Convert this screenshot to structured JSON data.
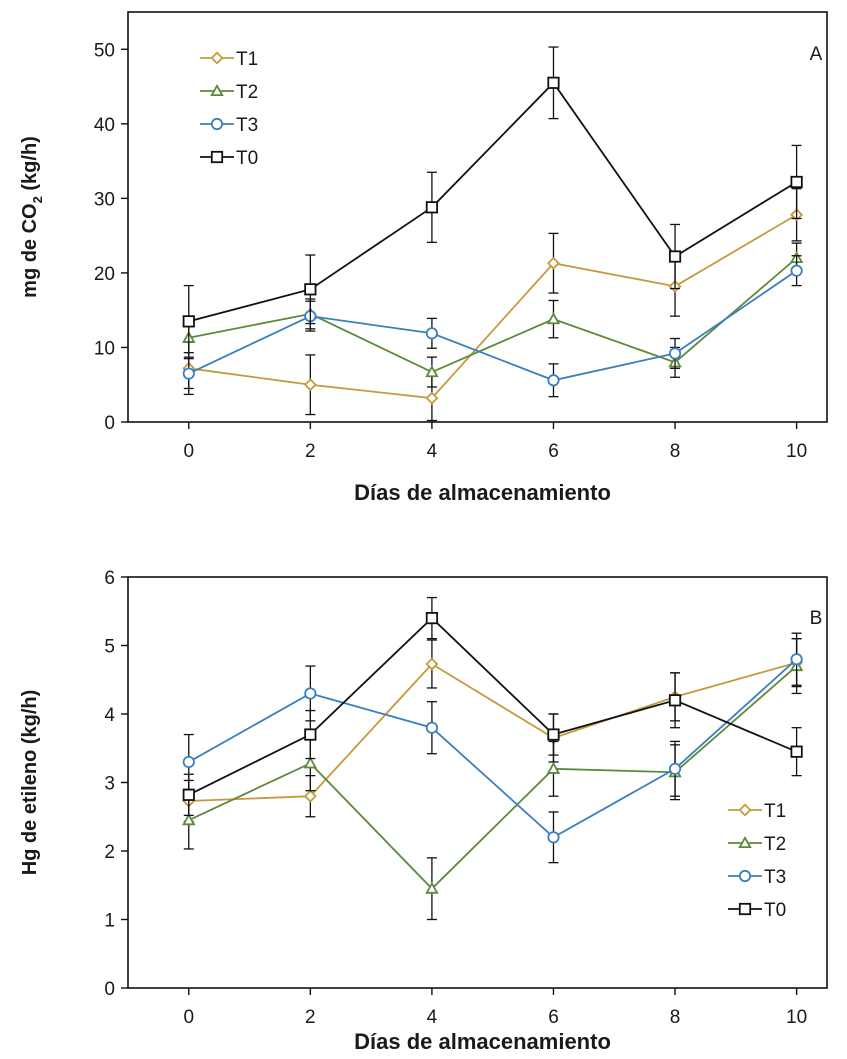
{
  "chart_data": [
    {
      "type": "line",
      "panel_label": "A",
      "xlabel": "Días de almacenamiento",
      "ylabel_pre": "mg de CO",
      "ylabel_sub": "2",
      "ylabel_post": " (kg/h)",
      "x": [
        0,
        2,
        4,
        6,
        8,
        10
      ],
      "xlim": [
        -1,
        10.5
      ],
      "ylim": [
        0,
        55
      ],
      "yticks": [
        0,
        10,
        20,
        30,
        40,
        50
      ],
      "grid": false,
      "legend_position": "top-left",
      "series": [
        {
          "name": "T1",
          "color": "#c49a3c",
          "marker": "diamond",
          "values": [
            7.2,
            5.0,
            3.2,
            21.3,
            18.2,
            27.8
          ],
          "errors": [
            3.5,
            4.0,
            3.0,
            4.0,
            4.0,
            3.5
          ]
        },
        {
          "name": "T2",
          "color": "#5c8a3a",
          "marker": "triangle",
          "values": [
            11.3,
            14.5,
            6.7,
            13.8,
            8.0,
            22.0
          ],
          "errors": [
            2.0,
            2.0,
            2.0,
            2.5,
            2.0,
            2.0
          ]
        },
        {
          "name": "T3",
          "color": "#3a7fbf",
          "marker": "circle",
          "values": [
            6.5,
            14.2,
            11.9,
            5.6,
            9.2,
            20.3
          ],
          "errors": [
            2.0,
            2.0,
            2.0,
            2.2,
            2.0,
            2.0
          ]
        },
        {
          "name": "T0",
          "color": "#111111",
          "marker": "square",
          "values": [
            13.5,
            17.8,
            28.8,
            45.5,
            22.2,
            32.2
          ],
          "errors": [
            4.8,
            4.6,
            4.7,
            4.8,
            4.3,
            4.9
          ]
        }
      ]
    },
    {
      "type": "line",
      "panel_label": "B",
      "xlabel": "Días de almacenamiento",
      "ylabel": "Hg de etileno (kg/h)",
      "x": [
        0,
        2,
        4,
        6,
        8,
        10
      ],
      "xlim": [
        -1,
        10.5
      ],
      "ylim": [
        0,
        6
      ],
      "yticks": [
        0,
        1,
        2,
        3,
        4,
        5,
        6
      ],
      "grid": false,
      "legend_position": "bottom-right",
      "series": [
        {
          "name": "T1",
          "color": "#c49a3c",
          "marker": "diamond",
          "values": [
            2.73,
            2.8,
            4.73,
            3.65,
            4.25,
            4.75
          ],
          "errors": [
            0.3,
            0.3,
            0.35,
            0.35,
            0.35,
            0.35
          ]
        },
        {
          "name": "T2",
          "color": "#5c8a3a",
          "marker": "triangle",
          "values": [
            2.45,
            3.28,
            1.45,
            3.2,
            3.15,
            4.7
          ],
          "errors": [
            0.42,
            0.4,
            0.45,
            0.4,
            0.4,
            0.4
          ]
        },
        {
          "name": "T3",
          "color": "#3a7fbf",
          "marker": "circle",
          "values": [
            3.3,
            4.3,
            3.8,
            2.2,
            3.2,
            4.8
          ],
          "errors": [
            0.4,
            0.4,
            0.38,
            0.37,
            0.4,
            0.38
          ]
        },
        {
          "name": "T0",
          "color": "#111111",
          "marker": "square",
          "values": [
            2.82,
            3.7,
            5.4,
            3.7,
            4.2,
            3.45
          ],
          "errors": [
            0.3,
            0.35,
            0.3,
            0.3,
            0.4,
            0.35
          ]
        }
      ]
    }
  ]
}
